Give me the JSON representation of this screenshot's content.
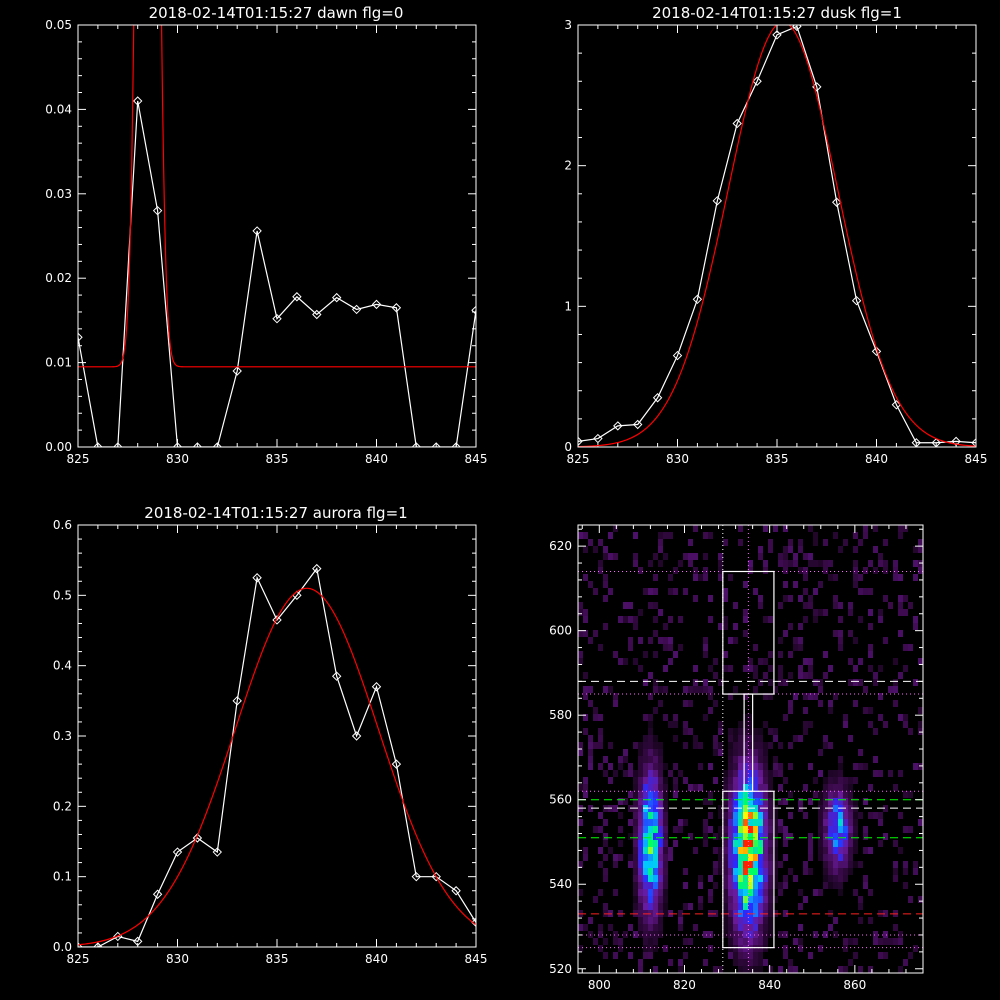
{
  "chart_data": [
    {
      "type": "line",
      "title": "2018-02-14T01:15:27 dawn flg=0",
      "xlim": [
        825,
        845
      ],
      "ylim": [
        0,
        0.05
      ],
      "x_ticks": [
        "825",
        "830",
        "835",
        "840",
        "845"
      ],
      "y_ticks": [
        "0.00",
        "0.01",
        "0.02",
        "0.03",
        "0.04",
        "0.05"
      ],
      "series": [
        {
          "color": "#ffffff",
          "marker": "diamond",
          "x": [
            825,
            826,
            827,
            828,
            829,
            830,
            831,
            832,
            833,
            834,
            835,
            836,
            837,
            838,
            839,
            840,
            841,
            842,
            843,
            844,
            845
          ],
          "y": [
            0.013,
            0.0,
            0.0,
            0.041,
            0.028,
            0.0,
            0.0,
            0.0,
            0.009,
            0.0256,
            0.0152,
            0.0178,
            0.0157,
            0.0177,
            0.0163,
            0.0169,
            0.0165,
            0.0,
            0.0,
            0.0,
            0.0162
          ]
        },
        {
          "color": "#ff0000",
          "kind": "gaussian",
          "x_range": [
            825,
            845
          ],
          "baseline": 0.0095,
          "amplitude": 0.22,
          "center": 828.5,
          "sigma": 0.38
        }
      ]
    },
    {
      "type": "line",
      "title": "2018-02-14T01:15:27 dusk flg=1",
      "xlim": [
        825,
        845
      ],
      "ylim": [
        0,
        3
      ],
      "x_ticks": [
        "825",
        "830",
        "835",
        "840",
        "845"
      ],
      "y_ticks": [
        "0",
        "1",
        "2",
        "3"
      ],
      "series": [
        {
          "color": "#ffffff",
          "marker": "diamond",
          "x": [
            825,
            826,
            827,
            828,
            829,
            830,
            831,
            832,
            833,
            834,
            835,
            836,
            837,
            838,
            839,
            840,
            841,
            842,
            843,
            844,
            845
          ],
          "y": [
            0.04,
            0.06,
            0.15,
            0.16,
            0.35,
            0.65,
            1.05,
            1.75,
            2.3,
            2.6,
            2.93,
            2.99,
            2.56,
            1.74,
            1.04,
            0.68,
            0.3,
            0.03,
            0.03,
            0.04,
            0.03
          ]
        },
        {
          "color": "#ff0000",
          "kind": "gaussian",
          "x_range": [
            825,
            845
          ],
          "baseline": 0.0,
          "amplitude": 3.02,
          "center": 835.3,
          "sigma": 2.75
        }
      ]
    },
    {
      "type": "line",
      "title": "2018-02-14T01:15:27 aurora flg=1",
      "xlim": [
        825,
        845
      ],
      "ylim": [
        0,
        0.6
      ],
      "x_ticks": [
        "825",
        "830",
        "835",
        "840",
        "845"
      ],
      "y_ticks": [
        "0.0",
        "0.1",
        "0.2",
        "0.3",
        "0.4",
        "0.5",
        "0.6"
      ],
      "series": [
        {
          "color": "#ffffff",
          "marker": "diamond",
          "x": [
            825,
            826,
            827,
            828,
            829,
            830,
            831,
            832,
            833,
            834,
            835,
            836,
            837,
            838,
            839,
            840,
            841,
            842,
            843,
            844,
            845
          ],
          "y": [
            0.0,
            0.0,
            0.015,
            0.008,
            0.075,
            0.135,
            0.155,
            0.135,
            0.35,
            0.525,
            0.465,
            0.5,
            0.538,
            0.385,
            0.3,
            0.37,
            0.26,
            0.1,
            0.1,
            0.08,
            0.035
          ]
        },
        {
          "color": "#ff0000",
          "kind": "gaussian",
          "x_range": [
            825,
            845
          ],
          "baseline": 0.0,
          "amplitude": 0.51,
          "center": 836.5,
          "sigma": 3.6
        }
      ]
    },
    {
      "type": "heatmap",
      "title": "",
      "xlim": [
        795,
        876
      ],
      "ylim": [
        519,
        625
      ],
      "x_ticks": [
        "800",
        "820",
        "840",
        "860"
      ],
      "y_ticks": [
        "520",
        "540",
        "560",
        "580",
        "600",
        "620"
      ],
      "colormap": [
        "#000000",
        "#3a0a4a",
        "#6a1a9a",
        "#2a2aff",
        "#00c8ff",
        "#00ff60",
        "#ffff00",
        "#ff2000"
      ],
      "blobs": [
        {
          "x": 812,
          "y": 550,
          "sx": 2.0,
          "sy": 12,
          "peak": 0.72
        },
        {
          "x": 835,
          "y": 548,
          "sx": 2.8,
          "sy": 13,
          "peak": 1.0
        },
        {
          "x": 856,
          "y": 553,
          "sx": 2.2,
          "sy": 7,
          "peak": 0.55
        }
      ],
      "boxes": [
        {
          "x0": 829,
          "x1": 841,
          "y0": 525,
          "y1": 562,
          "color": "#ffffff"
        },
        {
          "x0": 829,
          "x1": 841,
          "y0": 585,
          "y1": 614,
          "color": "#ffffff"
        },
        {
          "x0": 834,
          "x1": 836,
          "y0": 562,
          "y1": 585,
          "color": "#ffffff"
        }
      ],
      "vlines": [
        {
          "x": 829,
          "color": "#ffffff",
          "style": "dotted"
        },
        {
          "x": 835,
          "color": "#ff66ff",
          "style": "dotted"
        }
      ],
      "hlines": [
        {
          "y": 614,
          "color": "#ff66ff",
          "style": "dotted"
        },
        {
          "y": 588,
          "color": "#ffffff",
          "style": "dashed"
        },
        {
          "y": 585,
          "color": "#ff66ff",
          "style": "dotted"
        },
        {
          "y": 562,
          "color": "#ff66ff",
          "style": "dotted"
        },
        {
          "y": 560,
          "color": "#00ff00",
          "style": "dashed"
        },
        {
          "y": 558,
          "color": "#ffffff",
          "style": "dashed"
        },
        {
          "y": 551,
          "color": "#00ff00",
          "style": "dashed"
        },
        {
          "y": 533,
          "color": "#ff2020",
          "style": "dashed"
        },
        {
          "y": 528,
          "color": "#ff66ff",
          "style": "dotted"
        },
        {
          "y": 525,
          "color": "#ff66ff",
          "style": "dotted"
        }
      ]
    }
  ]
}
